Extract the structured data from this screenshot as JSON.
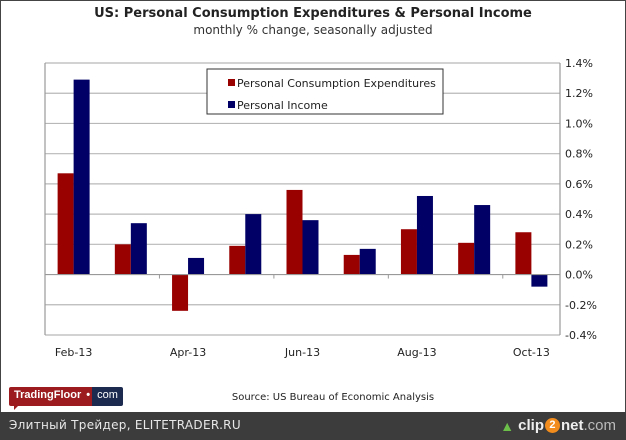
{
  "chart_data": {
    "type": "bar",
    "title": "US: Personal Consumption Expenditures & Personal Income",
    "subtitle": "monthly % change, seasonally adjusted",
    "categories": [
      "Feb-13",
      "Mar-13",
      "Apr-13",
      "May-13",
      "Jun-13",
      "Jul-13",
      "Aug-13",
      "Sep-13",
      "Oct-13"
    ],
    "x_tick_labels": [
      "Feb-13",
      "Apr-13",
      "Jun-13",
      "Aug-13",
      "Oct-13"
    ],
    "series": [
      {
        "name": "Personal Consumption Expenditures",
        "color": "#990000",
        "values": [
          0.67,
          0.2,
          -0.24,
          0.19,
          0.56,
          0.13,
          0.3,
          0.21,
          0.28
        ]
      },
      {
        "name": "Personal Income",
        "color": "#000066",
        "values": [
          1.29,
          0.34,
          0.11,
          0.4,
          0.36,
          0.17,
          0.52,
          0.46,
          -0.08
        ]
      }
    ],
    "ylim": [
      -0.4,
      1.4
    ],
    "y_ticks": [
      1.4,
      1.2,
      1.0,
      0.8,
      0.6,
      0.4,
      0.2,
      0.0,
      -0.2,
      -0.4
    ],
    "y_tick_labels": [
      "1.4%",
      "1.2%",
      "1.0%",
      "0.8%",
      "0.6%",
      "0.4%",
      "0.2%",
      "0.0%",
      "-0.2%",
      "-0.4%"
    ],
    "y_axis_side": "right",
    "grid": true,
    "legend_position": "top-center",
    "xlabel": "",
    "ylabel": ""
  },
  "source": "Source: US Bureau of Economic Analysis",
  "logo": {
    "name": "TradingFloor",
    "dot": "•",
    "suffix": "com"
  },
  "footer": {
    "caption": "Элитный Трейдер, ELITETRADER.RU",
    "brand_prefix": "clip",
    "brand_two": "2",
    "brand_mid": "net",
    "brand_suffix": ".com"
  }
}
